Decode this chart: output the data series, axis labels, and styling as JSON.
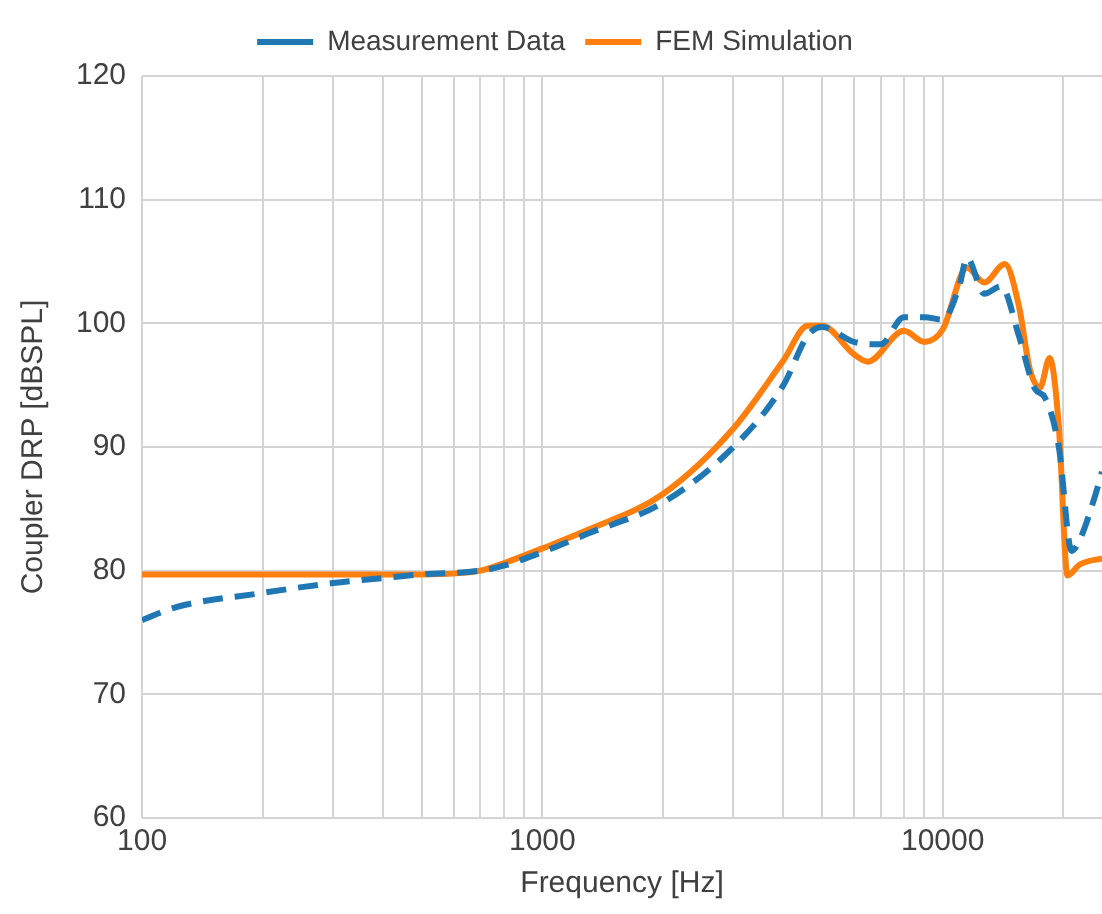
{
  "chart_data": {
    "type": "line",
    "xlabel": "Frequency [Hz]",
    "ylabel": "Coupler DRP [dBSPL]",
    "log": "x",
    "grid": true,
    "legend": "top",
    "marker": "none",
    "xlim": [
      100,
      25000
    ],
    "ylim": [
      60,
      120
    ],
    "yticks": [
      60,
      70,
      80,
      90,
      100,
      110,
      120
    ],
    "xticks": [
      100,
      {
        "value": 200,
        "label": null
      },
      {
        "value": 300,
        "label": null
      },
      {
        "value": 400,
        "label": null
      },
      {
        "value": 500,
        "label": null
      },
      {
        "value": 600,
        "label": null
      },
      {
        "value": 700,
        "label": null
      },
      {
        "value": 800,
        "label": null
      },
      {
        "value": 900,
        "label": null
      },
      1000,
      {
        "value": 2000,
        "label": null
      },
      {
        "value": 3000,
        "label": null
      },
      {
        "value": 4000,
        "label": null
      },
      {
        "value": 5000,
        "label": null
      },
      {
        "value": 6000,
        "label": null
      },
      {
        "value": 7000,
        "label": null
      },
      {
        "value": 8000,
        "label": null
      },
      {
        "value": 9000,
        "label": null
      },
      10000,
      {
        "value": 20000,
        "label": null
      }
    ],
    "series": [
      {
        "name": "Measurement Data",
        "color": "#1f77b4",
        "line_style": "dashed",
        "x": [
          100,
          120,
          200,
          300,
          400,
          500,
          700,
          800,
          1000,
          1300,
          2000,
          3000,
          4000,
          4600,
          5000,
          6000,
          7000,
          8000,
          9000,
          10000,
          11000,
          11500,
          12700,
          14000,
          15500,
          17000,
          18000,
          19500,
          21000,
          22000,
          24000,
          25000
        ],
        "values": [
          76,
          77,
          78.2,
          79,
          79.4,
          79.7,
          80,
          80.4,
          81.5,
          83,
          85.5,
          90,
          95,
          99,
          99.7,
          98.5,
          98.3,
          100.5,
          100.5,
          100.3,
          103,
          105.3,
          102.4,
          103,
          99,
          94.7,
          94,
          90,
          81.6,
          82.5,
          86,
          88
        ]
      },
      {
        "name": "FEM Simulation",
        "color": "#ff7f0e",
        "line_style": "solid",
        "x": [
          100,
          200,
          300,
          500,
          700,
          800,
          1000,
          1300,
          2000,
          3000,
          4000,
          4600,
          5000,
          6000,
          6500,
          8000,
          9000,
          10000,
          11500,
          12700,
          14300,
          15500,
          16500,
          17500,
          18500,
          19500,
          20500,
          22000,
          25000
        ],
        "values": [
          79.7,
          79.7,
          79.7,
          79.7,
          80,
          80.6,
          81.8,
          83.3,
          86.2,
          91.5,
          97,
          99.8,
          99.8,
          97.5,
          96.9,
          99.4,
          98.5,
          99.5,
          104.5,
          103.3,
          104.8,
          101.4,
          96.3,
          94.8,
          97.2,
          91.7,
          79.6,
          80.5,
          81
        ]
      }
    ]
  }
}
